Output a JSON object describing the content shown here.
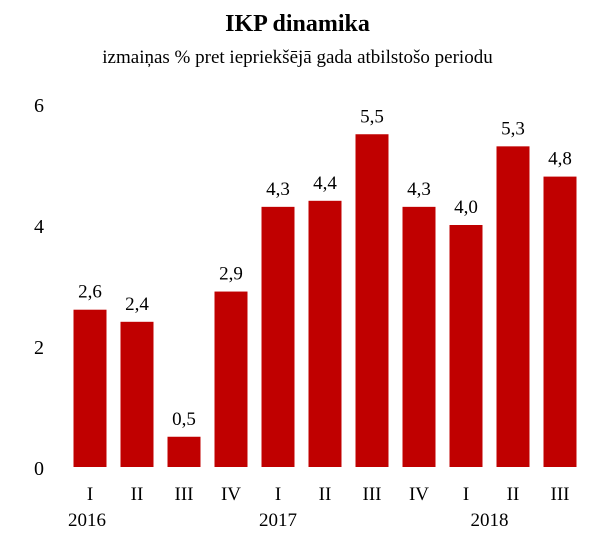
{
  "chart_data": {
    "type": "bar",
    "title": "IKP dinamika",
    "subtitle": "izmaiņas % pret iepriekšējā gada atbilstošo periodu",
    "categories": [
      "I",
      "II",
      "III",
      "IV",
      "I",
      "II",
      "III",
      "IV",
      "I",
      "II",
      "III"
    ],
    "values": [
      2.6,
      2.4,
      0.5,
      2.9,
      4.3,
      4.4,
      5.5,
      4.3,
      4.0,
      5.3,
      4.8
    ],
    "value_labels": [
      "2,6",
      "2,4",
      "0,5",
      "2,9",
      "4,3",
      "4,4",
      "5,5",
      "4,3",
      "4,0",
      "5,3",
      "4,8"
    ],
    "groups": [
      {
        "label": "2016",
        "from": 0,
        "to": 0
      },
      {
        "label": "2017",
        "from": 1,
        "to": 4
      },
      {
        "label": "2018",
        "from": 5,
        "to": 7
      }
    ],
    "yticks": [
      "0",
      "2",
      "4",
      "6"
    ],
    "ytick_values": [
      0,
      2,
      4,
      6
    ],
    "ylim": [
      0,
      6
    ],
    "grid": false,
    "legend": "none",
    "bar_color": "#C00000"
  }
}
